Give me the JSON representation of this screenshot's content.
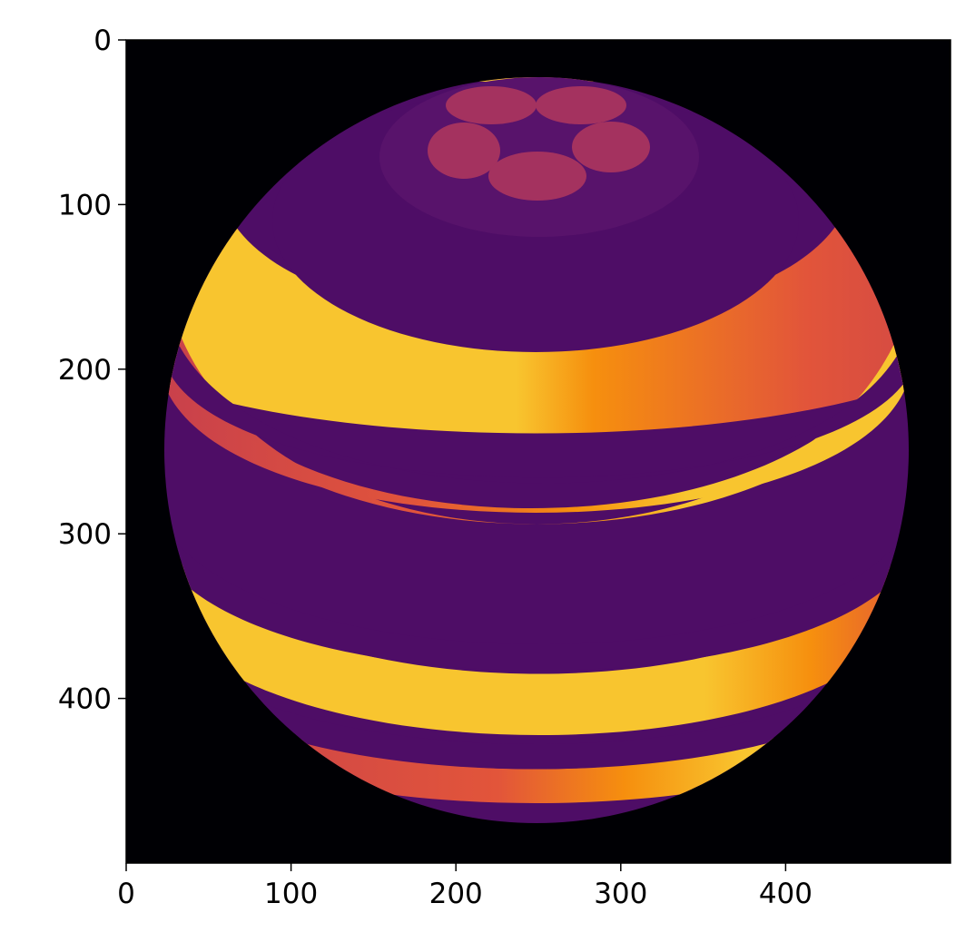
{
  "figure": {
    "type": "image",
    "colormap": "inferno",
    "background_color": "#000004",
    "sphere_base_color": "#4e0d66",
    "top_disc_color": "#58136b",
    "dot_color": "#a4325f",
    "stripe_colors": [
      "#f8c52f",
      "#f68f0e",
      "#e86426",
      "#d8484a",
      "#c8404c"
    ]
  },
  "axes": {
    "x_ticks": [
      "0",
      "100",
      "200",
      "300",
      "400"
    ],
    "y_ticks": [
      "0",
      "100",
      "200",
      "300",
      "400"
    ],
    "x_tick_values": [
      0,
      100,
      200,
      300,
      400
    ],
    "y_tick_values": [
      0,
      100,
      200,
      300,
      400
    ],
    "xlim": [
      0,
      500
    ],
    "ylim": [
      500,
      0
    ],
    "x_inverted": false,
    "y_inverted": true,
    "grid": false
  }
}
